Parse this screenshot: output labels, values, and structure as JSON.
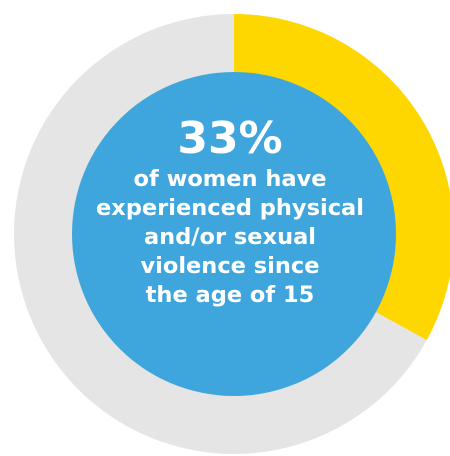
{
  "chart_data": {
    "type": "pie",
    "variant": "donut",
    "value_percent": 33,
    "remainder_percent": 67,
    "value_label": "33%",
    "caption_lines": [
      "of women have",
      "experienced physical",
      "and/or sexual",
      "violence since",
      "the age of 15"
    ],
    "colors": {
      "value_segment": "#FFD700",
      "remainder_segment": "#E5E5E5",
      "center_disc": "#3EA6DC",
      "text": "#FFFFFF"
    }
  }
}
